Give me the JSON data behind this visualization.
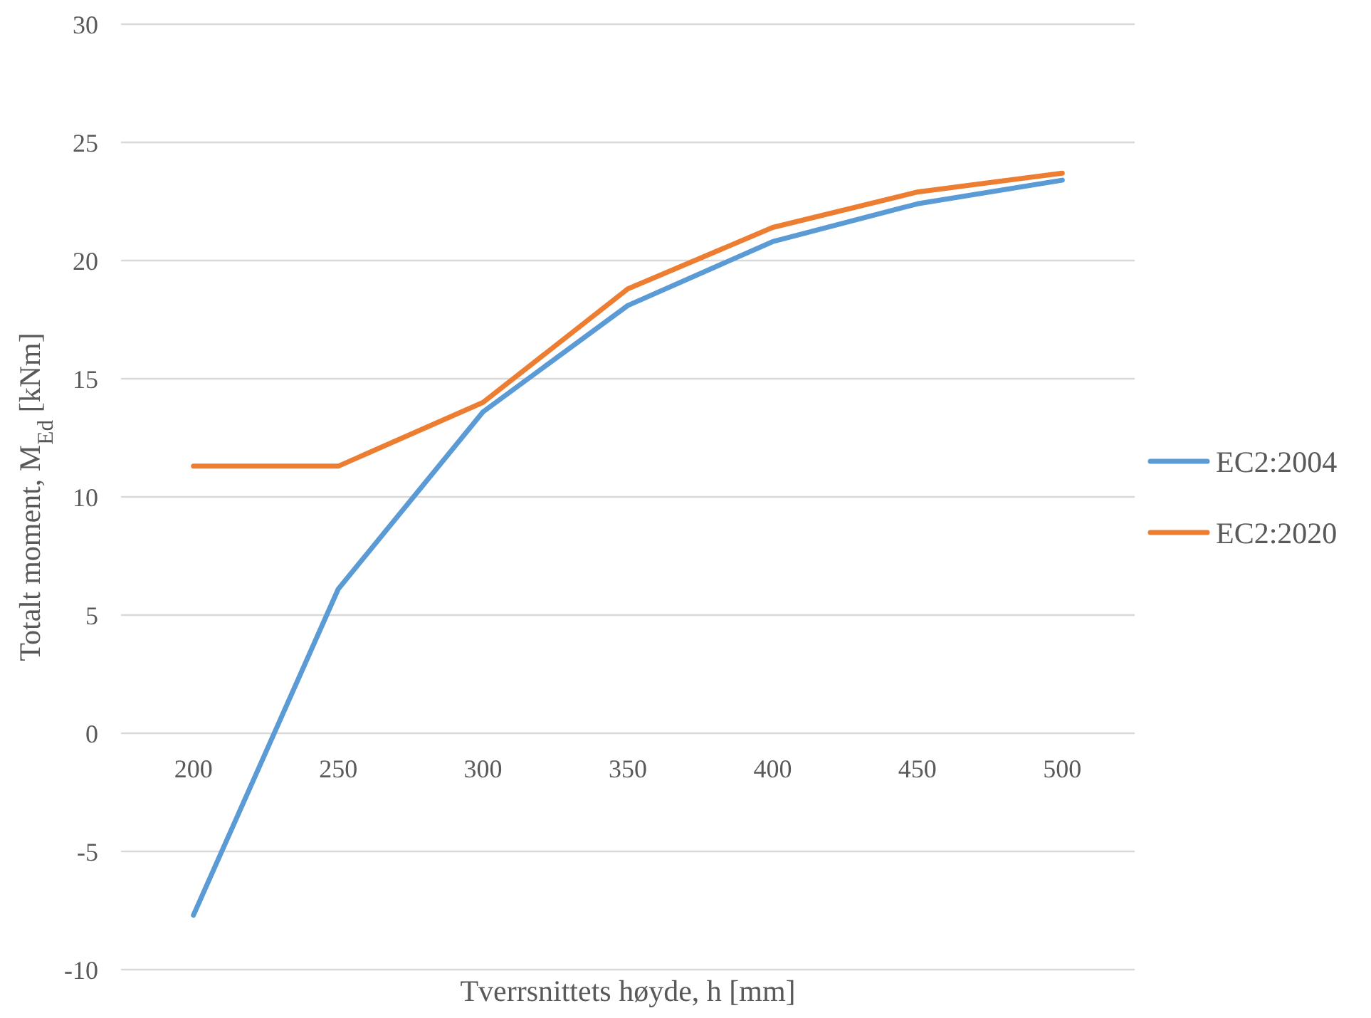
{
  "chart_data": {
    "type": "line",
    "xlabel": "Tverrsnittets høyde, h [mm]",
    "ylabel": "Totalt moment, M$_{Ed}$ [kNm]",
    "categories": [
      "200",
      "250",
      "300",
      "350",
      "400",
      "450",
      "500"
    ],
    "series": [
      {
        "name": "EC2:2004",
        "color": "#5b9bd5",
        "values": [
          -7.7,
          6.1,
          13.6,
          18.1,
          20.8,
          22.4,
          23.4
        ]
      },
      {
        "name": "EC2:2020",
        "color": "#ed7d31",
        "values": [
          11.3,
          11.3,
          14.0,
          18.8,
          21.4,
          22.9,
          23.7
        ]
      }
    ],
    "ylim": [
      -10,
      30
    ],
    "yticks": [
      -10,
      -5,
      0,
      5,
      10,
      15,
      20,
      25,
      30
    ],
    "grid": "y",
    "legend": "right",
    "marker": "none",
    "line_style": "solid"
  }
}
